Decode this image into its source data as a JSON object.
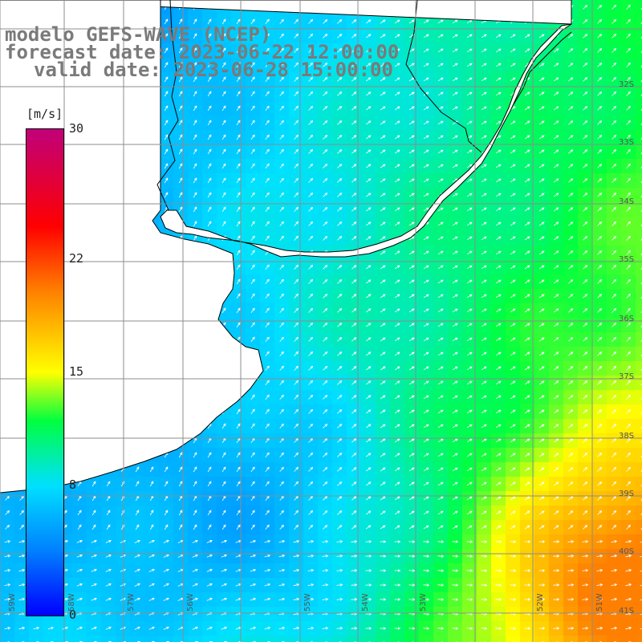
{
  "title": {
    "model": "modelo GEFS-WAVE (NCEP)",
    "forecast": "forecast date: 2023-06-22 12:00:00",
    "valid": "valid date: 2023-06-28 15:00:00"
  },
  "colorbar": {
    "unit": "[m/s]",
    "ticks": [
      "30",
      "22",
      "15",
      "8",
      "0"
    ],
    "tick_values": [
      30,
      22,
      15,
      8,
      0
    ],
    "range": [
      0,
      30
    ],
    "colors": [
      "#0000ff",
      "#0080ff",
      "#00e0ff",
      "#00ff40",
      "#ffff00",
      "#ff8000",
      "#ff0000",
      "#c0007a"
    ]
  },
  "lat_labels": [
    "32S",
    "33S",
    "34S",
    "35S",
    "36S",
    "37S",
    "38S",
    "39S",
    "40S",
    "41S"
  ],
  "lon_labels": [
    "59W",
    "58W",
    "57W",
    "56W",
    "55W",
    "54W",
    "53W",
    "52W",
    "51W"
  ],
  "legend_colors": {
    "land": "#ffffff",
    "coast": "#000000",
    "grid": "#8c8c8c",
    "arrow": "#ffffff"
  }
}
